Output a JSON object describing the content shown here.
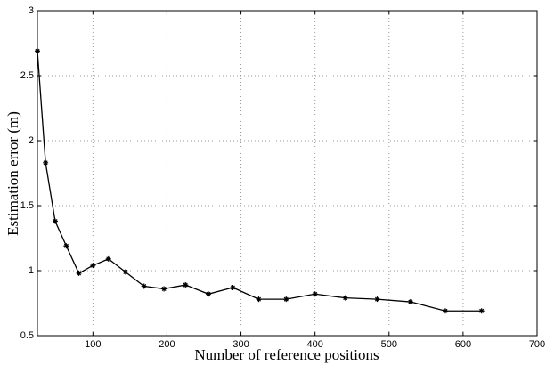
{
  "chart_data": {
    "type": "line",
    "x_label": "Number of reference positions",
    "y_label": "Estimation error (m)",
    "x": [
      25,
      36,
      49,
      64,
      81,
      100,
      121,
      144,
      169,
      196,
      225,
      256,
      289,
      324,
      361,
      400,
      441,
      484,
      529,
      576,
      625
    ],
    "values": [
      2.69,
      1.83,
      1.38,
      1.19,
      0.98,
      1.04,
      1.09,
      0.99,
      0.88,
      0.86,
      0.89,
      0.82,
      0.87,
      0.78,
      0.78,
      0.82,
      0.79,
      0.78,
      0.76,
      0.69,
      0.69
    ],
    "color": "#000000",
    "xlim": [
      25,
      700
    ],
    "xticks": [
      100,
      200,
      300,
      400,
      500,
      600,
      700
    ],
    "ylim": [
      0.5,
      3
    ],
    "yticks": [
      0.5,
      1,
      1.5,
      2,
      2.5,
      3
    ],
    "grid": true
  }
}
